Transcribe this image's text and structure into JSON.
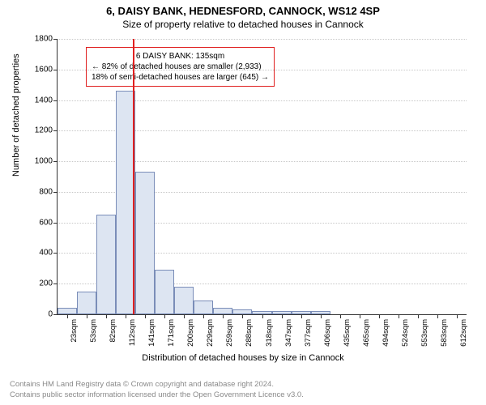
{
  "title_main": "6, DAISY BANK, HEDNESFORD, CANNOCK, WS12 4SP",
  "title_sub": "Size of property relative to detached houses in Cannock",
  "y_axis_label": "Number of detached properties",
  "x_axis_label": "Distribution of detached houses by size in Cannock",
  "footer_line1": "Contains HM Land Registry data © Crown copyright and database right 2024.",
  "footer_line2": "Contains public sector information licensed under the Open Government Licence v3.0.",
  "chart": {
    "type": "histogram",
    "ylim": [
      0,
      1800
    ],
    "ytick_step": 200,
    "y_ticks": [
      0,
      200,
      400,
      600,
      800,
      1000,
      1200,
      1400,
      1600,
      1800
    ],
    "x_labels": [
      "23sqm",
      "53sqm",
      "82sqm",
      "112sqm",
      "141sqm",
      "171sqm",
      "200sqm",
      "229sqm",
      "259sqm",
      "288sqm",
      "318sqm",
      "347sqm",
      "377sqm",
      "406sqm",
      "435sqm",
      "465sqm",
      "494sqm",
      "524sqm",
      "553sqm",
      "583sqm",
      "612sqm"
    ],
    "values": [
      40,
      150,
      650,
      1460,
      930,
      290,
      180,
      90,
      40,
      30,
      20,
      20,
      20,
      20,
      0,
      0,
      0,
      0,
      0,
      0,
      0
    ],
    "bar_fill": "#dde5f2",
    "bar_stroke": "#7a8db8",
    "background_color": "#ffffff",
    "grid_color": "#c8c8c8",
    "reference_line_color": "#e02020",
    "reference_index": 3.85
  },
  "annotation": {
    "line1": "6 DAISY BANK: 135sqm",
    "line2": "← 82% of detached houses are smaller (2,933)",
    "line3": "18% of semi-detached houses are larger (645) →"
  }
}
